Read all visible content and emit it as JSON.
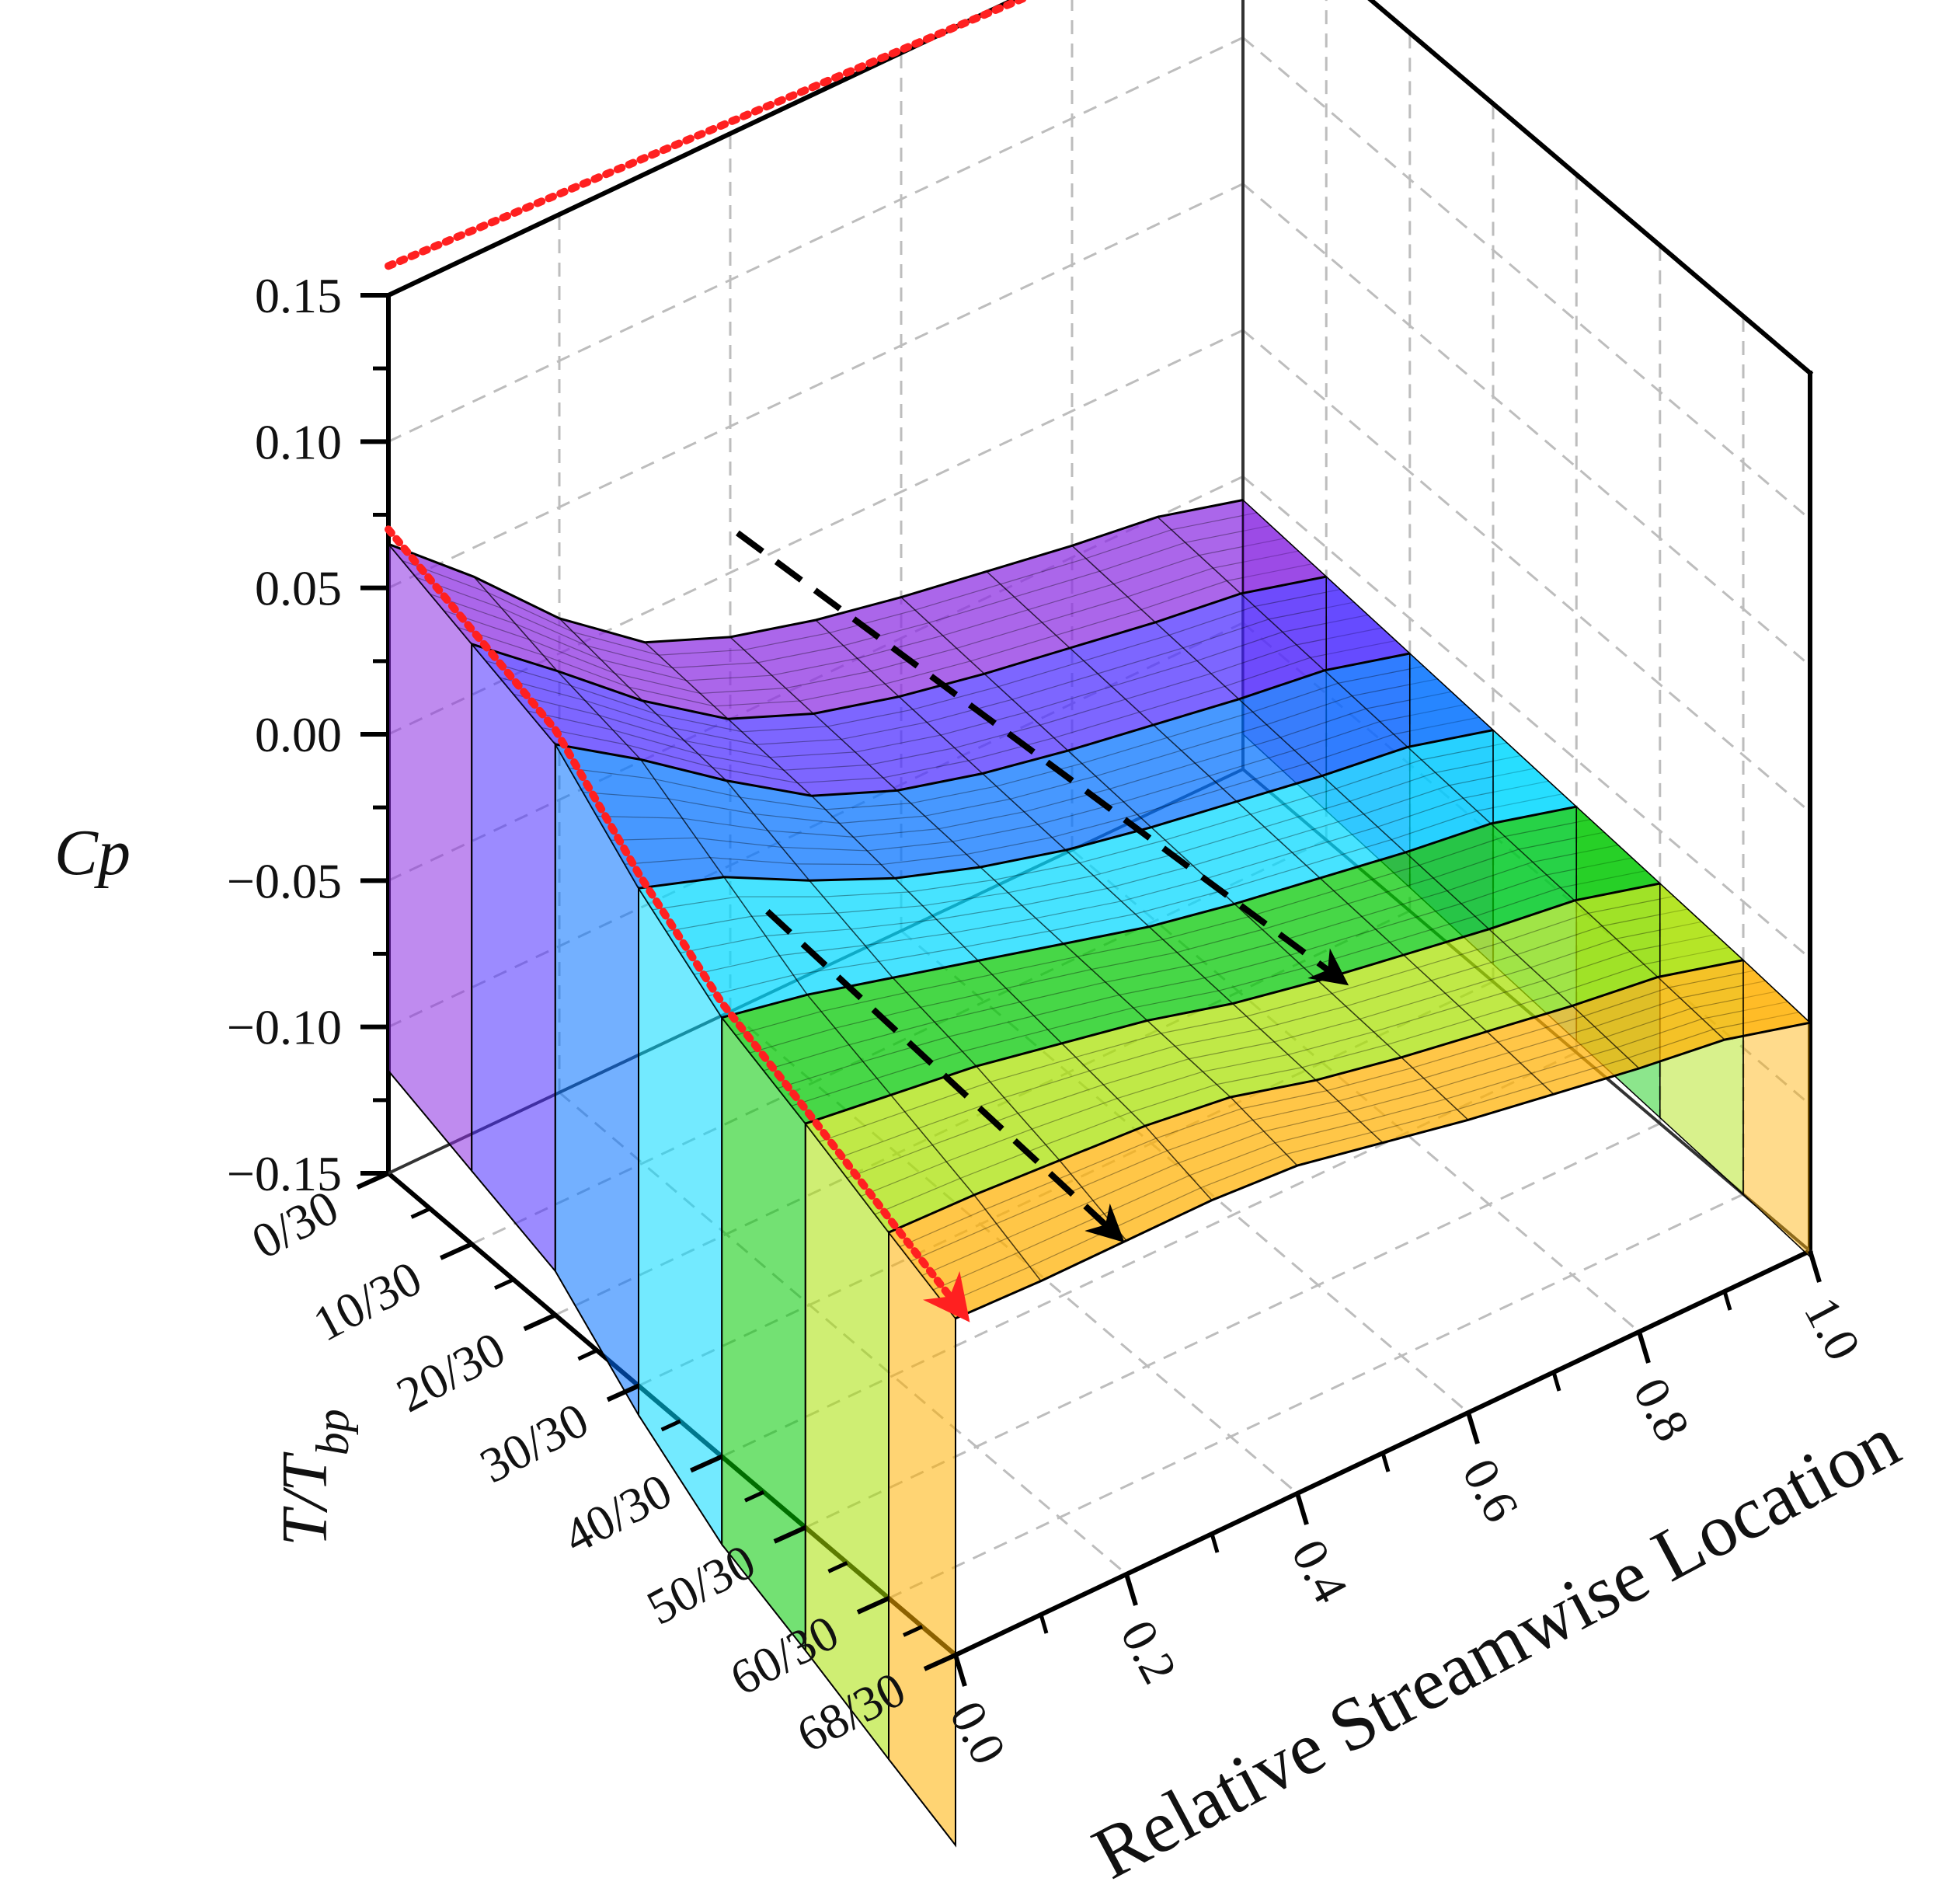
{
  "chart_data": {
    "type": "surface-3d",
    "z_axis": {
      "label": "Cp",
      "ticks": [
        "0.15",
        "0.10",
        "0.05",
        "0.00",
        "−0.05",
        "−0.10",
        "−0.15"
      ],
      "tick_values": [
        0.15,
        0.1,
        0.05,
        0.0,
        -0.05,
        -0.1,
        -0.15
      ],
      "range": [
        -0.15,
        0.15
      ]
    },
    "t_axis": {
      "label_main": "T/T",
      "label_sub": "bp",
      "ticks": [
        "0/30",
        "10/30",
        "20/30",
        "30/30",
        "40/30",
        "50/30",
        "60/30",
        "68/30"
      ],
      "tick_values": [
        0,
        0.333,
        0.667,
        1.0,
        1.333,
        1.667,
        2.0,
        2.267
      ],
      "range": [
        0,
        2.267
      ]
    },
    "x_axis": {
      "label": "Relative Streamwise Location",
      "ticks": [
        "0.0",
        "0.2",
        "0.4",
        "0.6",
        "0.8",
        "1.0"
      ],
      "tick_values": [
        0.0,
        0.2,
        0.4,
        0.6,
        0.8,
        1.0
      ],
      "range": [
        0.0,
        1.0
      ]
    },
    "colors": [
      "#8a2be2",
      "#4b2bff",
      "#0070ff",
      "#00d8ff",
      "#00c800",
      "#a8e000",
      "#ffb000",
      "#ff3a10"
    ],
    "profiles": [
      {
        "t": 0.0,
        "cp": [
          0.065,
          0.04,
          0.012,
          -0.01,
          -0.022,
          -0.03,
          -0.036,
          -0.041,
          -0.046,
          -0.05,
          -0.058
        ]
      },
      {
        "t": 0.333,
        "cp": [
          0.055,
          0.032,
          0.008,
          -0.012,
          -0.024,
          -0.032,
          -0.038,
          -0.043,
          -0.048,
          -0.052,
          -0.06
        ]
      },
      {
        "t": 0.667,
        "cp": [
          0.045,
          0.026,
          0.005,
          -0.014,
          -0.026,
          -0.034,
          -0.04,
          -0.045,
          -0.05,
          -0.054,
          -0.062
        ]
      },
      {
        "t": 1.0,
        "cp": [
          0.02,
          0.01,
          -0.005,
          -0.018,
          -0.028,
          -0.036,
          -0.042,
          -0.047,
          -0.052,
          -0.056,
          -0.064
        ]
      },
      {
        "t": 1.333,
        "cp": [
          0.0,
          -0.006,
          -0.014,
          -0.022,
          -0.03,
          -0.038,
          -0.044,
          -0.049,
          -0.054,
          -0.058,
          -0.066
        ]
      },
      {
        "t": 1.667,
        "cp": [
          -0.012,
          -0.016,
          -0.02,
          -0.026,
          -0.032,
          -0.04,
          -0.046,
          -0.051,
          -0.056,
          -0.06,
          -0.068
        ]
      },
      {
        "t": 2.0,
        "cp": [
          -0.025,
          -0.026,
          -0.028,
          -0.03,
          -0.034,
          -0.042,
          -0.048,
          -0.053,
          -0.058,
          -0.062,
          -0.07
        ]
      },
      {
        "t": 2.267,
        "cp": [
          -0.035,
          -0.036,
          -0.036,
          -0.036,
          -0.038,
          -0.044,
          -0.05,
          -0.055,
          -0.06,
          -0.064,
          -0.072
        ]
      }
    ],
    "x_samples": [
      0.0,
      0.1,
      0.2,
      0.3,
      0.4,
      0.5,
      0.6,
      0.7,
      0.8,
      0.9,
      1.0
    ],
    "grid": true
  }
}
